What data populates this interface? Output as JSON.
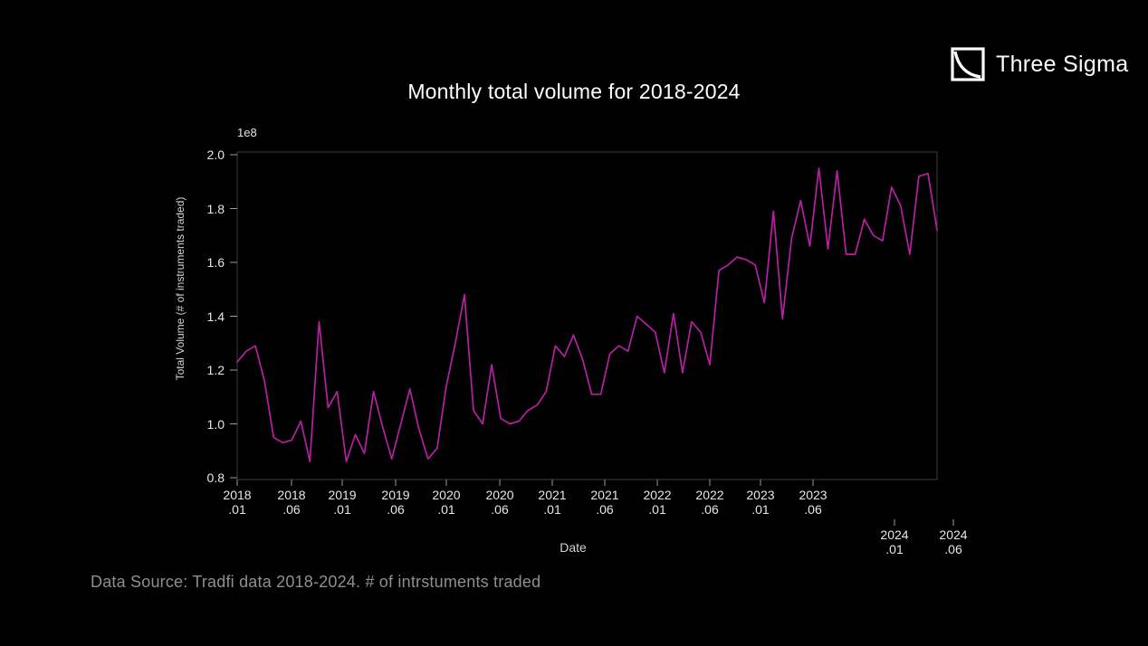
{
  "logo": {
    "name": "Three Sigma",
    "icon": "decay-curve-square-icon"
  },
  "chart_data": {
    "type": "line",
    "title": "Monthly total volume for 2018-2024",
    "xlabel": "Date",
    "ylabel": "Total Volume (# of instruments traded)",
    "y_offset_label": "1e8",
    "legend": "none",
    "grid": false,
    "background_color": "#000000",
    "line_color": "#b81fa4",
    "spine_color": "#3c3c3c",
    "tick_color": "#9c9c9c",
    "ylim_e8": [
      0.79,
      2.01
    ],
    "yticks_e8": [
      2.0,
      1.8,
      1.6,
      1.4,
      1.2,
      1.0,
      0.8
    ],
    "x": [
      "2018.01",
      "2018.02",
      "2018.03",
      "2018.04",
      "2018.05",
      "2018.06",
      "2018.07",
      "2018.08",
      "2018.09",
      "2018.10",
      "2018.11",
      "2018.12",
      "2019.01",
      "2019.02",
      "2019.03",
      "2019.04",
      "2019.05",
      "2019.06",
      "2019.07",
      "2019.08",
      "2019.09",
      "2019.10",
      "2019.11",
      "2019.12",
      "2020.01",
      "2020.02",
      "2020.03",
      "2020.04",
      "2020.05",
      "2020.06",
      "2020.07",
      "2020.08",
      "2020.09",
      "2020.10",
      "2020.11",
      "2020.12",
      "2021.01",
      "2021.02",
      "2021.03",
      "2021.04",
      "2021.05",
      "2021.06",
      "2021.07",
      "2021.08",
      "2021.09",
      "2021.10",
      "2021.11",
      "2021.12",
      "2022.01",
      "2022.02",
      "2022.03",
      "2022.04",
      "2022.05",
      "2022.06",
      "2022.07",
      "2022.08",
      "2022.09",
      "2022.10",
      "2022.11",
      "2022.12",
      "2023.01",
      "2023.02",
      "2023.03",
      "2023.04",
      "2023.05",
      "2023.06",
      "2023.07",
      "2023.08",
      "2023.09",
      "2023.10",
      "2023.11",
      "2023.12",
      "2024.01",
      "2024.02",
      "2024.03",
      "2024.04",
      "2024.05",
      "2024.06"
    ],
    "values_e8": [
      1.23,
      1.27,
      1.29,
      1.16,
      0.95,
      0.93,
      0.94,
      1.01,
      0.86,
      1.38,
      1.06,
      1.12,
      0.86,
      0.96,
      0.89,
      1.12,
      0.99,
      0.87,
      1.0,
      1.13,
      0.98,
      0.87,
      0.91,
      1.14,
      1.3,
      1.48,
      1.05,
      1.0,
      1.22,
      1.02,
      1.0,
      1.01,
      1.05,
      1.07,
      1.12,
      1.29,
      1.25,
      1.33,
      1.24,
      1.11,
      1.11,
      1.26,
      1.29,
      1.27,
      1.4,
      1.37,
      1.34,
      1.19,
      1.41,
      1.19,
      1.38,
      1.34,
      1.22,
      1.57,
      1.59,
      1.62,
      1.61,
      1.59,
      1.45,
      1.79,
      1.39,
      1.69,
      1.83,
      1.66,
      1.95,
      1.65,
      1.94,
      1.63,
      1.63,
      1.76,
      1.7,
      1.68,
      1.88,
      1.81,
      1.63,
      1.92,
      1.93,
      1.72
    ],
    "xticks": [
      {
        "line1": "2018",
        "line2": ".01",
        "frac": 0.0,
        "dropped": false
      },
      {
        "line1": "2018",
        "line2": ".06",
        "frac": 0.0776,
        "dropped": false
      },
      {
        "line1": "2019",
        "line2": ".01",
        "frac": 0.1501,
        "dropped": false
      },
      {
        "line1": "2019",
        "line2": ".06",
        "frac": 0.2264,
        "dropped": false
      },
      {
        "line1": "2020",
        "line2": ".01",
        "frac": 0.2988,
        "dropped": false
      },
      {
        "line1": "2020",
        "line2": ".06",
        "frac": 0.3752,
        "dropped": false
      },
      {
        "line1": "2021",
        "line2": ".01",
        "frac": 0.4502,
        "dropped": false
      },
      {
        "line1": "2021",
        "line2": ".06",
        "frac": 0.5252,
        "dropped": false
      },
      {
        "line1": "2022",
        "line2": ".01",
        "frac": 0.6003,
        "dropped": false
      },
      {
        "line1": "2022",
        "line2": ".06",
        "frac": 0.6753,
        "dropped": false
      },
      {
        "line1": "2023",
        "line2": ".01",
        "frac": 0.7477,
        "dropped": false
      },
      {
        "line1": "2023",
        "line2": ".06",
        "frac": 0.8228,
        "dropped": false
      },
      {
        "line1": "2024",
        "line2": ".01",
        "frac": 0.9392,
        "dropped": true
      },
      {
        "line1": "2024",
        "line2": ".06",
        "frac": 1.0233,
        "dropped": true
      }
    ]
  },
  "footer": {
    "source_note": "Data Source: Tradfi data 2018-2024. # of intrstuments traded"
  }
}
